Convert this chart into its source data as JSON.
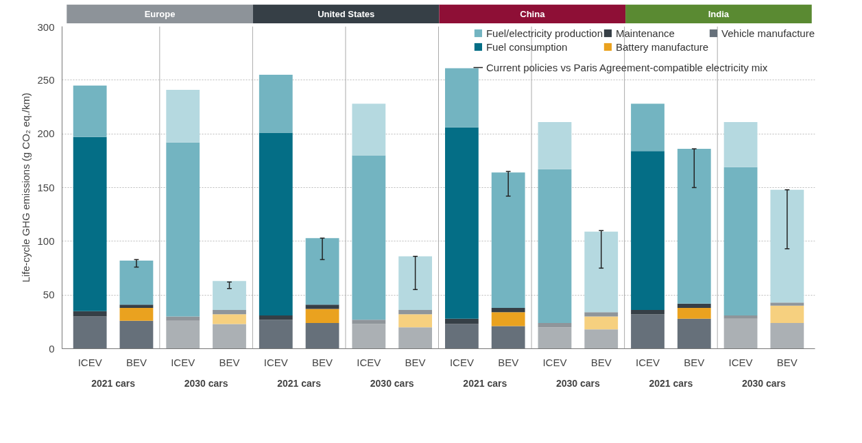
{
  "chart_data": {
    "type": "bar",
    "stacked": true,
    "ylabel": "Life-cycle GHG emissions (g CO₂ eq./km)",
    "categories": [
      "ICEV",
      "BEV",
      "ICEV",
      "BEV",
      "ICEV",
      "BEV",
      "ICEV",
      "BEV",
      "ICEV",
      "BEV",
      "ICEV",
      "BEV",
      "ICEV",
      "BEV",
      "ICEV",
      "BEV"
    ],
    "series": [
      {
        "name": "Vehicle manufacture",
        "color": "#66707a",
        "colors": [
          "#66707a",
          "#66707a",
          "#abb0b4",
          "#abb0b4",
          "#66707a",
          "#66707a",
          "#abb0b4",
          "#abb0b4",
          "#66707a",
          "#66707a",
          "#abb0b4",
          "#abb0b4",
          "#66707a",
          "#66707a",
          "#abb0b4",
          "#abb0b4"
        ],
        "values": [
          30,
          26,
          26,
          23,
          27,
          24,
          23,
          20,
          23,
          21,
          20,
          18,
          32,
          28,
          28,
          24
        ]
      },
      {
        "name": "Battery manufacture",
        "color": "#eaa21f",
        "colors": [
          "#eaa21f",
          "#eaa21f",
          "#f6d07f",
          "#f6d07f",
          "#eaa21f",
          "#eaa21f",
          "#f6d07f",
          "#f6d07f",
          "#eaa21f",
          "#eaa21f",
          "#f6d07f",
          "#f6d07f",
          "#eaa21f",
          "#eaa21f",
          "#f6d07f",
          "#f6d07f"
        ],
        "values": [
          0,
          12,
          0,
          9,
          0,
          13,
          0,
          12,
          0,
          13,
          0,
          12,
          0,
          10,
          0,
          16
        ]
      },
      {
        "name": "Maintenance",
        "color": "#363f46",
        "colors": [
          "#363f46",
          "#363f46",
          "#8f959a",
          "#8f959a",
          "#363f46",
          "#363f46",
          "#8f959a",
          "#8f959a",
          "#363f46",
          "#363f46",
          "#8f959a",
          "#8f959a",
          "#363f46",
          "#363f46",
          "#8f959a",
          "#8f959a"
        ],
        "values": [
          5,
          3,
          4,
          4,
          4,
          4,
          4,
          4,
          5,
          4,
          4,
          4,
          4,
          4,
          3,
          3
        ]
      },
      {
        "name": "Fuel consumption",
        "color": "#046e86",
        "colors": [
          "#046e86",
          "#046e86",
          "#73b4c1",
          "#73b4c1",
          "#046e86",
          "#046e86",
          "#73b4c1",
          "#73b4c1",
          "#046e86",
          "#046e86",
          "#73b4c1",
          "#73b4c1",
          "#046e86",
          "#046e86",
          "#73b4c1",
          "#73b4c1"
        ],
        "values": [
          162,
          0,
          162,
          0,
          170,
          0,
          153,
          0,
          178,
          0,
          143,
          0,
          148,
          0,
          138,
          0
        ]
      },
      {
        "name": "Fuel/electricity production",
        "color": "#73b4c1",
        "colors": [
          "#73b4c1",
          "#73b4c1",
          "#b5d9e0",
          "#b5d9e0",
          "#73b4c1",
          "#73b4c1",
          "#b5d9e0",
          "#b5d9e0",
          "#73b4c1",
          "#73b4c1",
          "#b5d9e0",
          "#b5d9e0",
          "#73b4c1",
          "#73b4c1",
          "#b5d9e0",
          "#b5d9e0"
        ],
        "values": [
          48,
          41,
          49,
          27,
          54,
          62,
          48,
          50,
          55,
          126,
          44,
          75,
          44,
          144,
          42,
          105
        ],
        "errors": [
          null,
          [
            76,
            83
          ],
          null,
          [
            56,
            62
          ],
          null,
          [
            83,
            103
          ],
          null,
          [
            55,
            86
          ],
          null,
          [
            142,
            165
          ],
          null,
          [
            75,
            110
          ],
          null,
          [
            150,
            186
          ],
          null,
          [
            93,
            148
          ]
        ]
      }
    ],
    "ylim": [
      0,
      300
    ],
    "yticks": [
      0,
      50,
      100,
      150,
      200,
      250,
      300
    ],
    "grid": "y",
    "legend": "top right",
    "annotations": [
      "Europe",
      "United States",
      "China",
      "India",
      "2021 cars",
      "2030 cars",
      "2021 cars",
      "2030 cars",
      "2021 cars",
      "2030 cars",
      "2021 cars",
      "2030 cars",
      "Current policies vs Paris Agreement-compatible electricity mix"
    ]
  }
}
